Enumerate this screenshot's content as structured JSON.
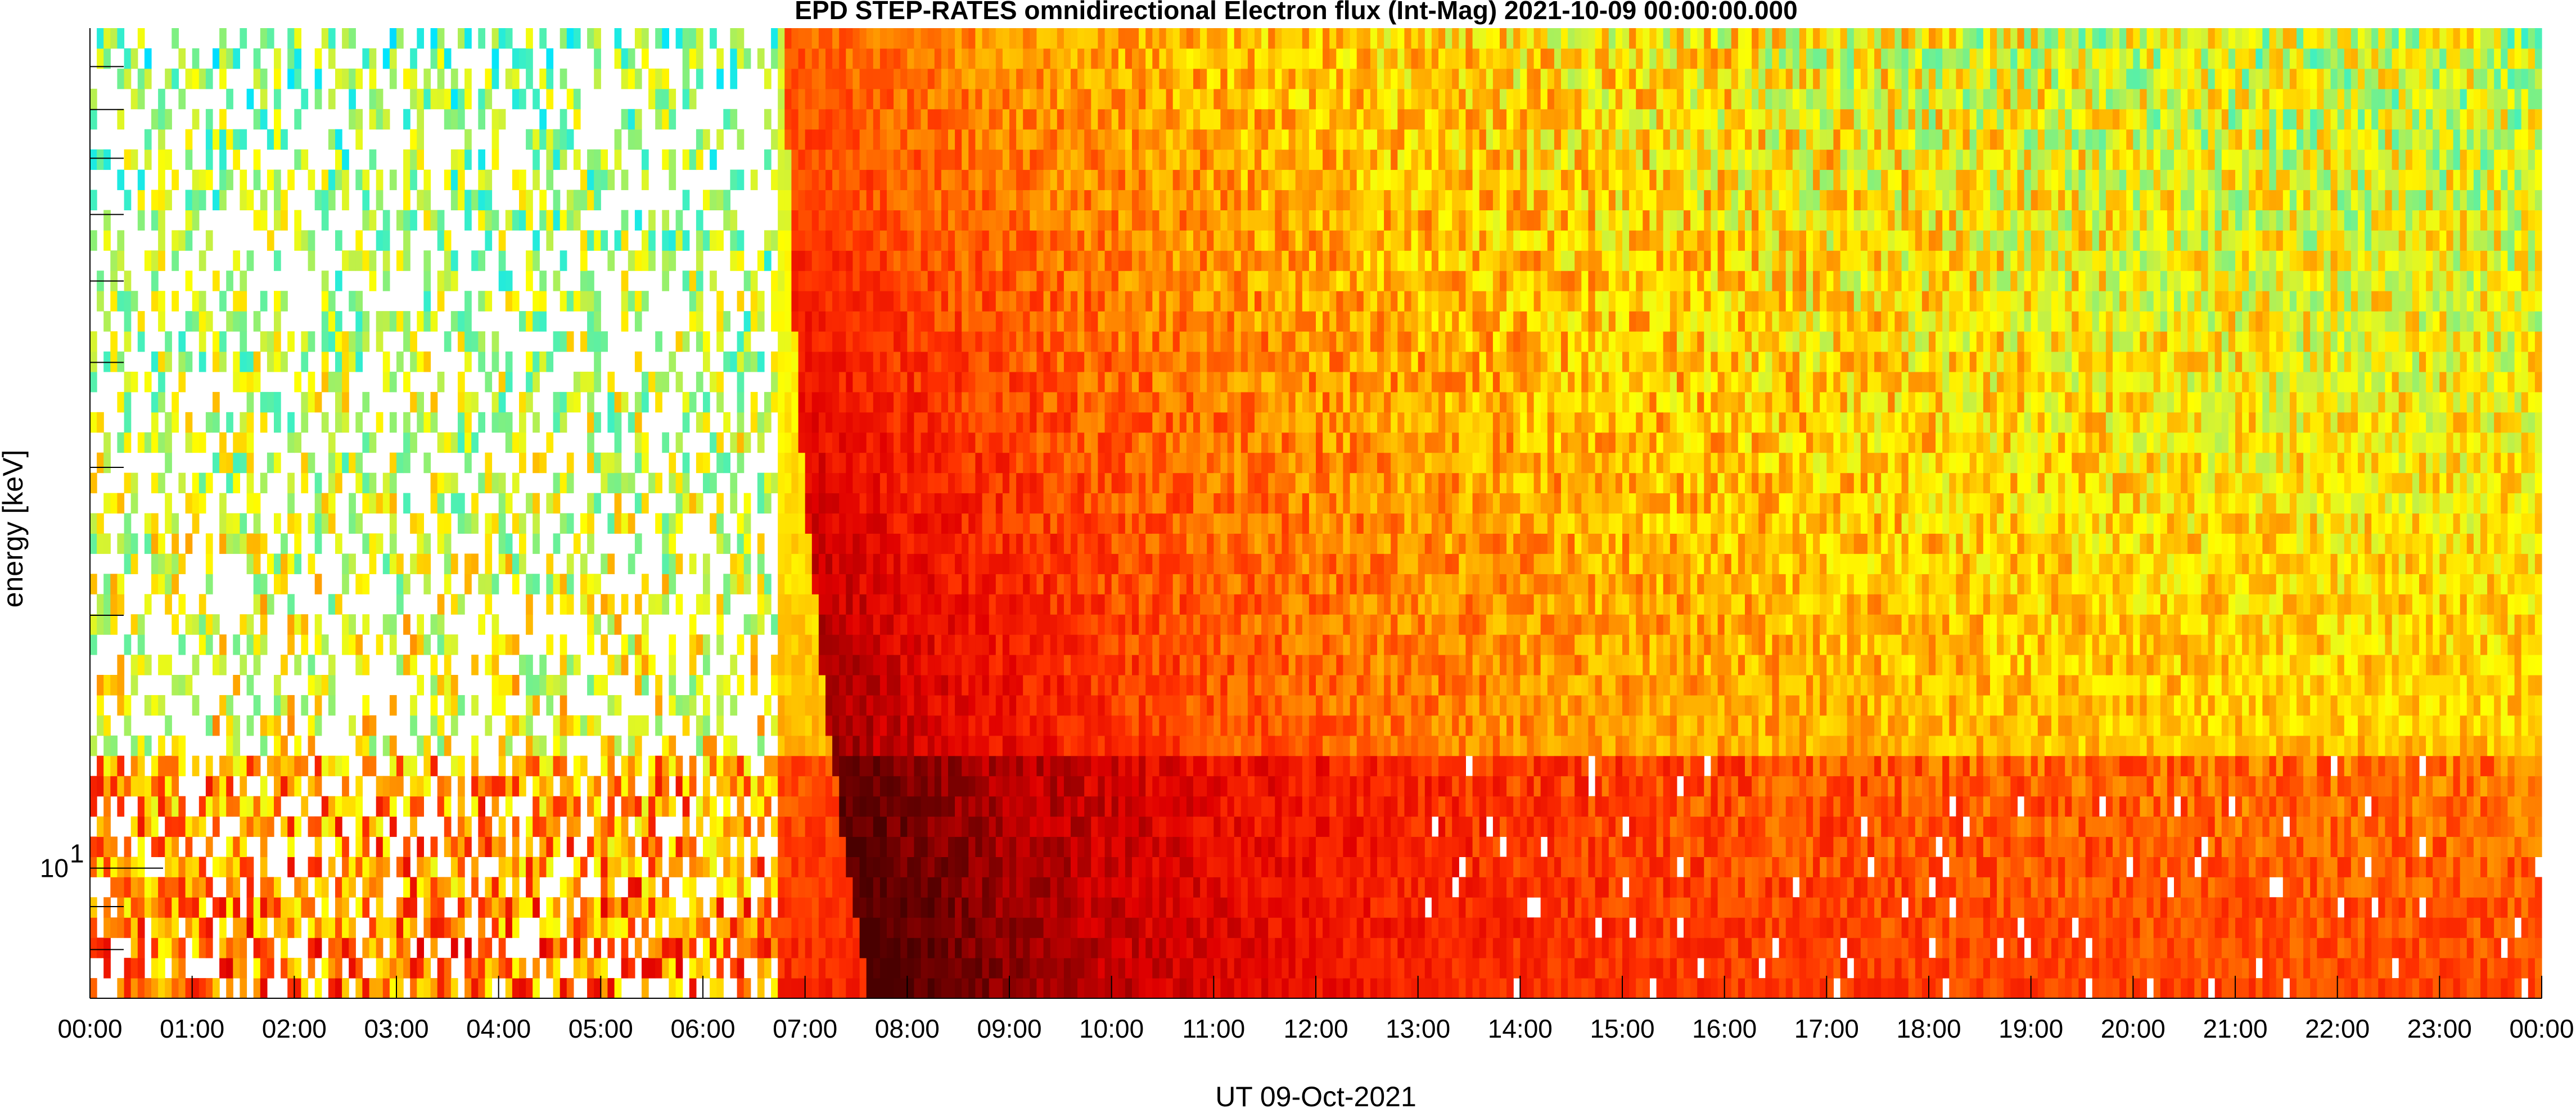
{
  "chart_data": {
    "type": "heatmap",
    "title": "EPD STEP-RATES omnidirectional Electron flux (Int-Mag) 2021-10-09 00:00:00.000",
    "xlabel": "UT 09-Oct-2021",
    "ylabel": "energy [keV]",
    "x_tick_labels": [
      "00:00",
      "01:00",
      "02:00",
      "03:00",
      "04:00",
      "05:00",
      "06:00",
      "07:00",
      "08:00",
      "09:00",
      "10:00",
      "11:00",
      "12:00",
      "13:00",
      "14:00",
      "15:00",
      "16:00",
      "17:00",
      "18:00",
      "19:00",
      "20:00",
      "21:00",
      "22:00",
      "23:00",
      "00:00"
    ],
    "xlim_hours": [
      0,
      24
    ],
    "y_scale": "log",
    "ylim_keV": [
      7,
      100
    ],
    "y_tick_label": {
      "base": "10",
      "exponent": "1",
      "value_keV": 10
    },
    "grid": false,
    "colorbar": "not shown",
    "colormap": [
      "#0a0aa0",
      "#0055ff",
      "#00e5ff",
      "#40f0c0",
      "#80f080",
      "#c8f040",
      "#ffff00",
      "#ffc000",
      "#ff8000",
      "#ff3000",
      "#e00000",
      "#900000",
      "#4a0000"
    ],
    "features": {
      "quiet_before_hours": [
        0,
        6.8
      ],
      "event_onset_hour": 6.8,
      "dispersion_peak_low_energy_hour": 7.6,
      "peak_flux_keV": 8,
      "low_energy_band_boundary_keV": 13.5
    }
  }
}
